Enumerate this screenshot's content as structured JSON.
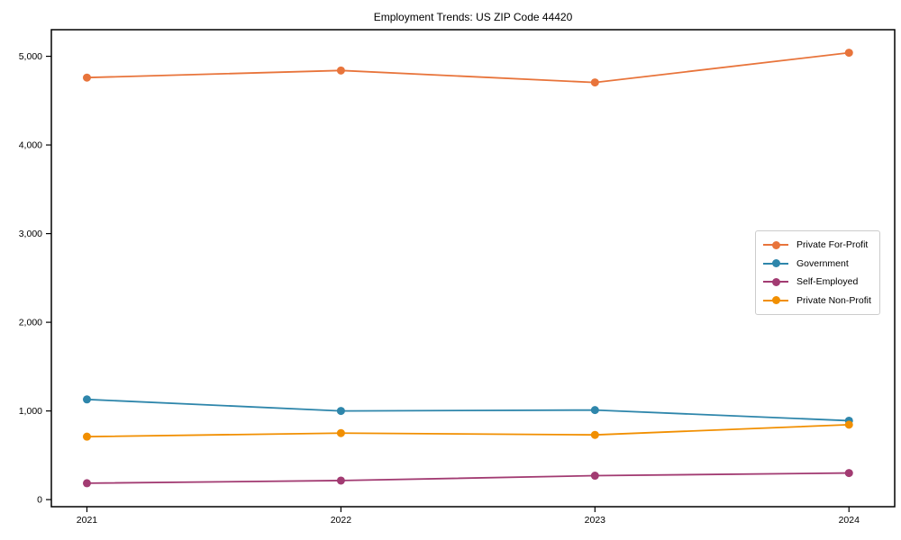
{
  "title": "Employment Trends: US ZIP Code 44420",
  "chart_data": {
    "type": "line",
    "title": "Employment Trends: US ZIP Code 44420",
    "xlabel": "",
    "ylabel": "",
    "x": [
      2021,
      2022,
      2023,
      2024
    ],
    "x_tick_labels": [
      "2021",
      "2022",
      "2023",
      "2024"
    ],
    "series": [
      {
        "name": "Private For-Profit",
        "color": "#E8743B",
        "values": [
          4760,
          4840,
          4705,
          5040
        ]
      },
      {
        "name": "Government",
        "color": "#2E86AB",
        "values": [
          1130,
          1000,
          1010,
          890
        ]
      },
      {
        "name": "Self-Employed",
        "color": "#A23B72",
        "values": [
          185,
          215,
          270,
          300
        ]
      },
      {
        "name": "Private Non-Profit",
        "color": "#F18F01",
        "values": [
          710,
          750,
          730,
          845
        ]
      }
    ],
    "y_ticks": [
      {
        "value": 0,
        "label": "0"
      },
      {
        "value": 1000,
        "label": "1,000"
      },
      {
        "value": 2000,
        "label": "2,000"
      },
      {
        "value": 3000,
        "label": "3,000"
      },
      {
        "value": 4000,
        "label": "4,000"
      },
      {
        "value": 5000,
        "label": "5,000"
      }
    ],
    "xlim": [
      2020.86,
      2024.18
    ],
    "ylim": [
      -80,
      5300
    ],
    "grid": false,
    "legend_position": "center right",
    "axis_color": "#000000"
  }
}
